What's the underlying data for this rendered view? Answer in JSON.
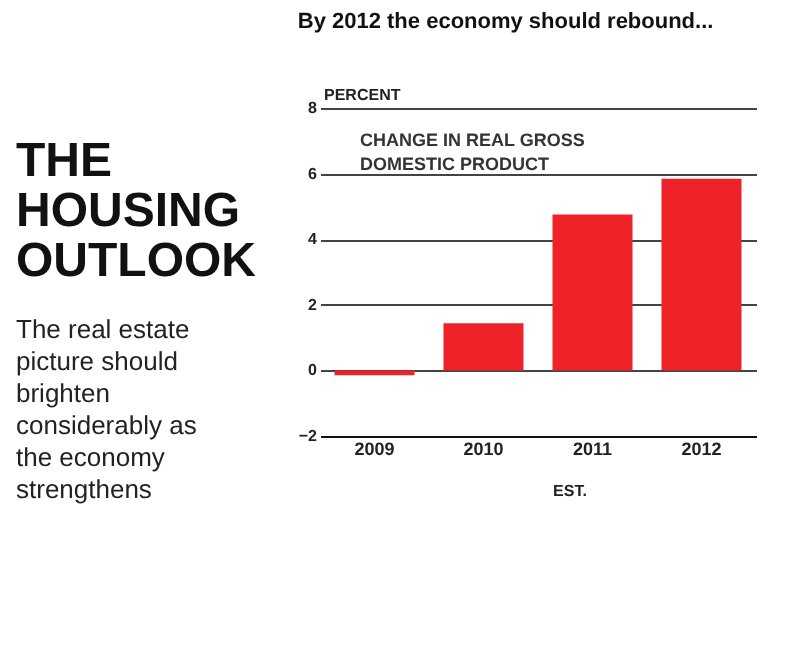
{
  "chart_data": {
    "type": "bar",
    "title": "THE HOUSING OUTLOOK",
    "subtitle": "The real estate picture should brighten considerably as the economy strengthens",
    "ylabel": "PERCENT",
    "annotations": [
      "By 2012 the economy should rebound...",
      "CHANGE IN REAL GROSS DOMESTIC PRODUCT",
      "EST."
    ],
    "categories": [
      "2009",
      "2010",
      "2011",
      "2012"
    ],
    "values": [
      -0.15,
      1.44,
      4.75,
      5.84
    ],
    "color": "#ee2229",
    "ylim": [
      -2,
      8
    ],
    "yticks": [
      -2,
      0,
      2,
      4,
      6,
      8
    ],
    "grid": "y"
  }
}
